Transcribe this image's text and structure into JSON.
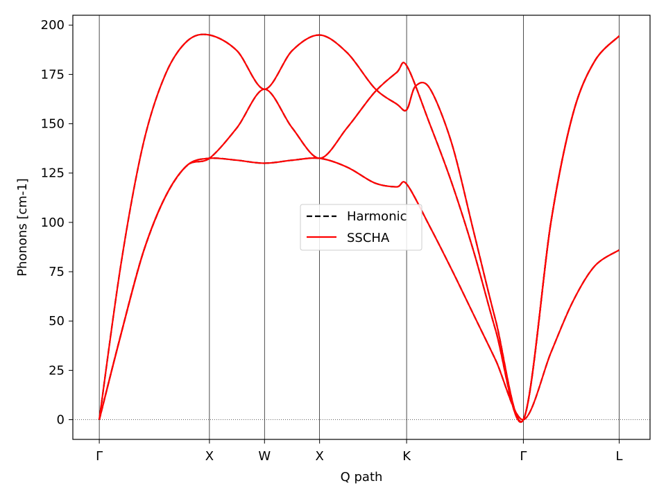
{
  "chart_data": {
    "type": "line",
    "xlabel": "Q path",
    "ylabel": "Phonons [cm-1]",
    "ylim": [
      -10,
      205
    ],
    "xlim": [
      -0.24,
      5.0
    ],
    "yticks": [
      0,
      25,
      50,
      75,
      100,
      125,
      150,
      175,
      200
    ],
    "high_symmetry_points": [
      {
        "label": "Γ",
        "x": 0.0
      },
      {
        "label": "X",
        "x": 1.0
      },
      {
        "label": "W",
        "x": 1.5
      },
      {
        "label": "X",
        "x": 2.0
      },
      {
        "label": "K",
        "x": 2.79
      },
      {
        "label": "Γ",
        "x": 3.85
      },
      {
        "label": "L",
        "x": 4.72
      }
    ],
    "legend": {
      "placement": "center",
      "entries": [
        "Harmonic",
        "SSCHA"
      ]
    },
    "colors": {
      "Harmonic": "#000000",
      "SSCHA": "#ff0000"
    },
    "series": [
      {
        "name": "Harmonic",
        "style": "dashed",
        "branches": [
          {
            "x": [
              0,
              0.2,
              0.4,
              0.6,
              0.8,
              1.0,
              1.25,
              1.5,
              1.75,
              2.0,
              2.25,
              2.5,
              2.7,
              2.79,
              3.0,
              3.2,
              3.4,
              3.6,
              3.85,
              4.1,
              4.3,
              4.5,
              4.72
            ],
            "y": [
              0,
              44,
              85,
              113,
              129,
              132.5,
              131.5,
              130,
              131.5,
              132.5,
              128,
              120,
              118,
              119.5,
              98,
              76,
              53,
              30,
              0,
              34,
              60,
              78,
              86
            ]
          },
          {
            "x": [
              0,
              0.2,
              0.4,
              0.6,
              0.8,
              1.0,
              1.25,
              1.5,
              1.75,
              2.0,
              2.25,
              2.5,
              2.7,
              2.79,
              3.0,
              3.2,
              3.4,
              3.6,
              3.85,
              4.1,
              4.3,
              4.5,
              4.72
            ],
            "y": [
              0,
              44,
              85,
              113,
              129,
              132.5,
              148,
              167.5,
              148,
              132.5,
              148,
              166,
              176,
              179.5,
              150,
              120,
              85,
              45,
              0,
              100,
              155,
              182,
              194.5
            ]
          },
          {
            "x": [
              0,
              0.2,
              0.4,
              0.6,
              0.8,
              1.0,
              1.25,
              1.5,
              1.75,
              2.0,
              2.25,
              2.5,
              2.7,
              2.79,
              2.87,
              3.0,
              3.2,
              3.4,
              3.6,
              3.85,
              4.1,
              4.3,
              4.5,
              4.72
            ],
            "y": [
              0,
              80,
              140,
              175,
              192,
              195,
              187,
              167.5,
              187,
              195,
              186,
              168,
              160,
              157,
              169,
              168,
              140,
              95,
              50,
              0,
              100,
              155,
              182,
              194.5
            ]
          }
        ]
      },
      {
        "name": "SSCHA",
        "style": "solid",
        "branches": [
          {
            "x": [
              0,
              0.2,
              0.4,
              0.6,
              0.8,
              1.0,
              1.25,
              1.5,
              1.75,
              2.0,
              2.25,
              2.5,
              2.7,
              2.79,
              3.0,
              3.2,
              3.4,
              3.6,
              3.85,
              4.1,
              4.3,
              4.5,
              4.72
            ],
            "y": [
              0,
              44,
              85,
              113,
              129,
              132.5,
              131.5,
              130,
              131.5,
              132.5,
              128,
              120,
              118,
              119.5,
              98,
              76,
              53,
              30,
              0,
              34,
              60,
              78,
              86
            ]
          },
          {
            "x": [
              0,
              0.2,
              0.4,
              0.6,
              0.8,
              1.0,
              1.25,
              1.5,
              1.75,
              2.0,
              2.25,
              2.5,
              2.7,
              2.79,
              3.0,
              3.2,
              3.4,
              3.6,
              3.85,
              4.1,
              4.3,
              4.5,
              4.72
            ],
            "y": [
              0,
              44,
              85,
              113,
              129,
              132.5,
              148,
              167.5,
              148,
              132.5,
              148,
              166,
              176,
              179.5,
              150,
              120,
              85,
              45,
              0,
              100,
              155,
              182,
              194.5
            ]
          },
          {
            "x": [
              0,
              0.2,
              0.4,
              0.6,
              0.8,
              1.0,
              1.25,
              1.5,
              1.75,
              2.0,
              2.25,
              2.5,
              2.7,
              2.79,
              2.87,
              3.0,
              3.2,
              3.4,
              3.6,
              3.85,
              4.1,
              4.3,
              4.5,
              4.72
            ],
            "y": [
              0,
              80,
              140,
              175,
              192,
              195,
              187,
              167.5,
              187,
              195,
              186,
              168,
              160,
              157,
              169,
              168,
              140,
              95,
              50,
              0,
              100,
              155,
              182,
              194.5
            ]
          }
        ]
      }
    ]
  }
}
